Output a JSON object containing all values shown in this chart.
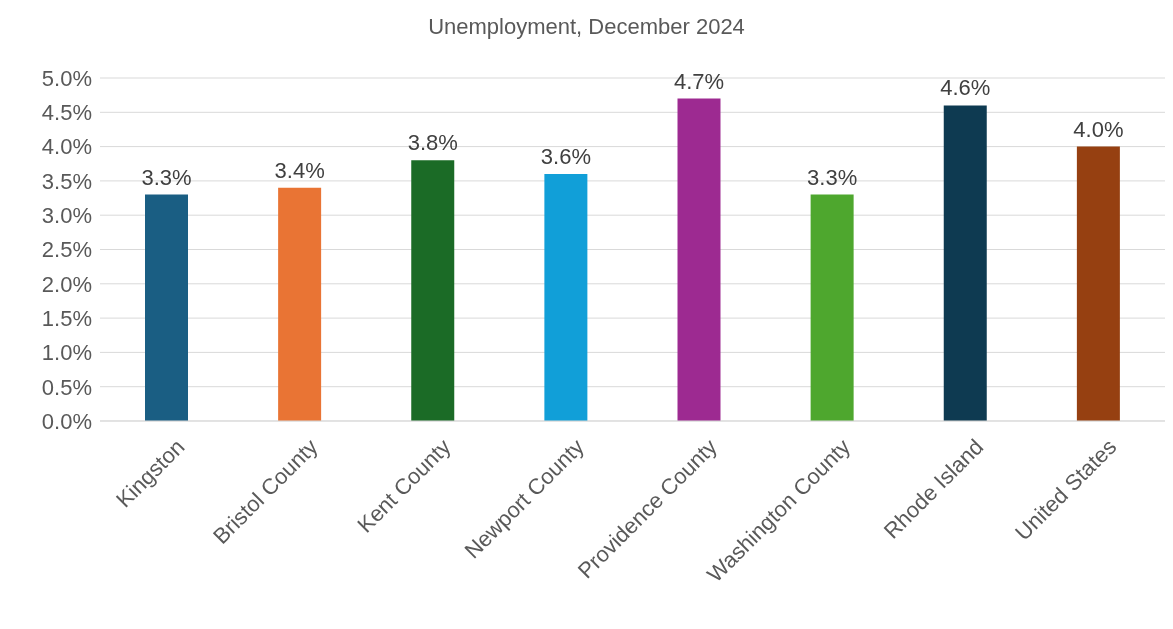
{
  "chart_data": {
    "type": "bar",
    "title": "Unemployment, December 2024",
    "categories": [
      "Kingston",
      "Bristol County",
      "Kent County",
      "Newport County",
      "Providence County",
      "Washington County",
      "Rhode Island",
      "United States"
    ],
    "values": [
      3.3,
      3.4,
      3.8,
      3.6,
      4.7,
      3.3,
      4.6,
      4.0
    ],
    "colors": [
      "#1a5e83",
      "#e97434",
      "#1b6b26",
      "#119fd8",
      "#9d2a91",
      "#4ea72e",
      "#0e3a51",
      "#964011"
    ],
    "value_labels": [
      "3.3%",
      "3.4%",
      "3.8%",
      "3.6%",
      "4.7%",
      "3.3%",
      "4.6%",
      "4.0%"
    ],
    "ylim": [
      0,
      5
    ],
    "yticks": [
      {
        "value": 0,
        "label": "0.0%"
      },
      {
        "value": 0.5,
        "label": "0.5%"
      },
      {
        "value": 1,
        "label": "1.0%"
      },
      {
        "value": 1.5,
        "label": "1.5%"
      },
      {
        "value": 2,
        "label": "2.0%"
      },
      {
        "value": 2.5,
        "label": "2.5%"
      },
      {
        "value": 3,
        "label": "3.0%"
      },
      {
        "value": 3.5,
        "label": "3.5%"
      },
      {
        "value": 4,
        "label": "4.0%"
      },
      {
        "value": 4.5,
        "label": "4.5%"
      },
      {
        "value": 5,
        "label": "5.0%"
      }
    ],
    "grid": "y"
  }
}
